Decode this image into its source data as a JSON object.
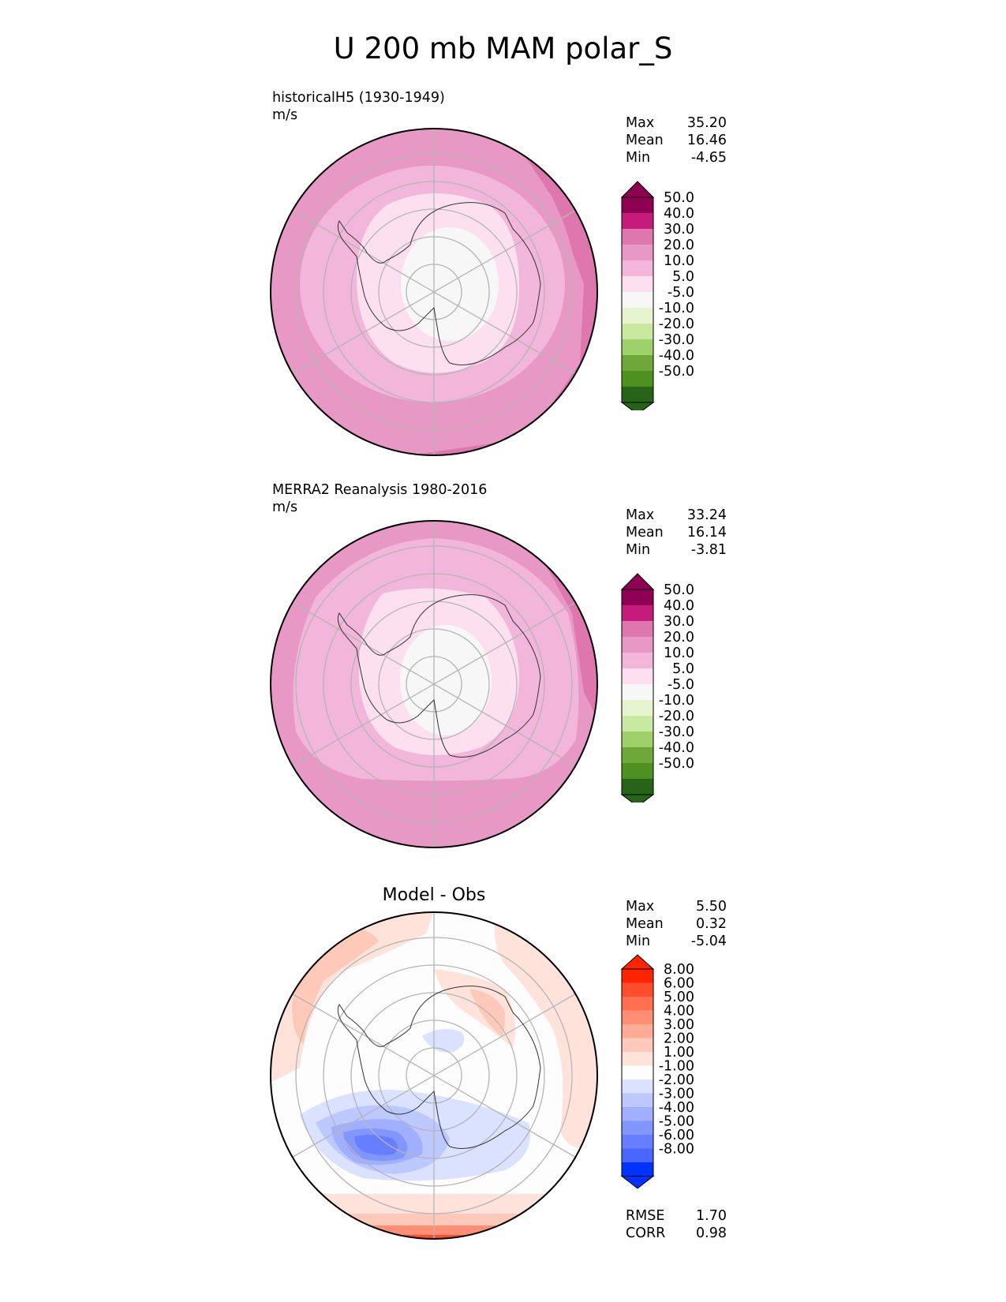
{
  "title": "U 200 mb MAM polar_S",
  "panels": [
    {
      "label_line1": "historicalH5 (1930-1949)",
      "label_line2": "m/s",
      "stats": {
        "max_label": "Max",
        "max": "35.20",
        "mean_label": "Mean",
        "mean": "16.46",
        "min_label": "Min",
        "min": "-4.65"
      },
      "colorbar_ticks": [
        "50.0",
        "40.0",
        "30.0",
        "20.0",
        "10.0",
        "5.0",
        "-5.0",
        "-10.0",
        "-20.0",
        "-30.0",
        "-40.0",
        "-50.0"
      ]
    },
    {
      "label_line1": "MERRA2 Reanalysis 1980-2016",
      "label_line2": "m/s",
      "stats": {
        "max_label": "Max",
        "max": "33.24",
        "mean_label": "Mean",
        "mean": "16.14",
        "min_label": "Min",
        "min": "-3.81"
      },
      "colorbar_ticks": [
        "50.0",
        "40.0",
        "30.0",
        "20.0",
        "10.0",
        "5.0",
        "-5.0",
        "-10.0",
        "-20.0",
        "-30.0",
        "-40.0",
        "-50.0"
      ]
    },
    {
      "label_center": "Model - Obs",
      "stats": {
        "max_label": "Max",
        "max": "5.50",
        "mean_label": "Mean",
        "mean": "0.32",
        "min_label": "Min",
        "min": "-5.04"
      },
      "colorbar_ticks": [
        "8.00",
        "6.00",
        "5.00",
        "4.00",
        "3.00",
        "2.00",
        "1.00",
        "-1.00",
        "-2.00",
        "-3.00",
        "-4.00",
        "-5.00",
        "-6.00",
        "-8.00"
      ],
      "metrics": {
        "rmse_label": "RMSE",
        "rmse": "1.70",
        "corr_label": "CORR",
        "corr": "0.98"
      }
    }
  ],
  "colors": {
    "pink_scale": [
      "#8e0152",
      "#c51b7d",
      "#de77ae",
      "#e898c5",
      "#f1b6da",
      "#fde0ef",
      "#f7f7f7",
      "#e6f5d0",
      "#c7e9a0",
      "#9fd16a",
      "#6ea83a",
      "#4d9221",
      "#276419"
    ],
    "diff_scale": [
      "#ff2400",
      "#ff4d2b",
      "#ff7050",
      "#ff8f74",
      "#ffac97",
      "#ffc9b9",
      "#ffe3da",
      "#fdfdfd",
      "#dbe2ff",
      "#bdc8ff",
      "#a0afff",
      "#8296ff",
      "#667eff",
      "#4966ff",
      "#2b4dff",
      "#0033ff"
    ]
  }
}
